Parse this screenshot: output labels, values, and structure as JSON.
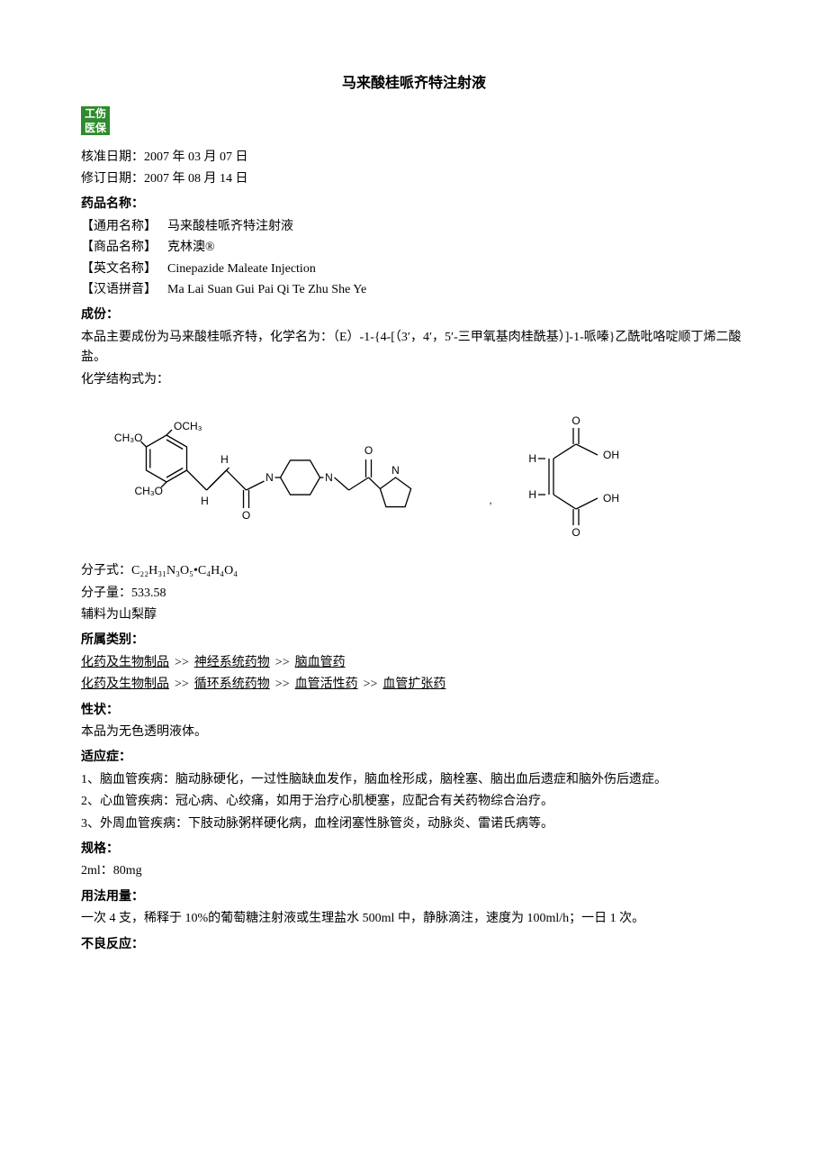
{
  "title": "马来酸桂哌齐特注射液",
  "badges": [
    "工伤",
    "医保"
  ],
  "approve_date_label": "核准日期：",
  "approve_date": "2007 年 03 月 07 日",
  "revise_date_label": "修订日期：",
  "revise_date": "2007 年 08 月 14 日",
  "sec_name": "药品名称：",
  "name_rows": [
    {
      "label": "【通用名称】",
      "value": "马来酸桂哌齐特注射液"
    },
    {
      "label": "【商品名称】",
      "value": "克林澳®"
    },
    {
      "label": "【英文名称】",
      "value": "Cinepazide Maleate Injection"
    },
    {
      "label": "【汉语拼音】",
      "value": "Ma Lai Suan Gui Pai Qi Te Zhu She Ye"
    }
  ],
  "sec_ingredient": "成份：",
  "ingredient_p1": "本品主要成份为马来酸桂哌齐特，化学名为：（E）-1-{4-[（3′，4′，5′-三甲氧基肉桂酰基）]-1-哌嗪}乙酰吡咯啶顺丁烯二酸盐。",
  "ingredient_p2": "化学结构式为：",
  "formula_label": "分子式：",
  "formula_value": "C₂₂H₃₁N₃O₅•C₄H₄O₄",
  "mw_label": "分子量：",
  "mw_value": "533.58",
  "excipient": "辅料为山梨醇",
  "sec_category": "所属类别：",
  "category_sep": ">>",
  "categories": [
    [
      "化药及生物制品",
      "神经系统药物",
      "脑血管药"
    ],
    [
      "化药及生物制品",
      "循环系统药物",
      "血管活性药",
      "血管扩张药"
    ]
  ],
  "sec_character": "性状：",
  "character_text": "本品为无色透明液体。",
  "sec_indication": "适应症：",
  "indications": [
    "1、脑血管疾病：脑动脉硬化，一过性脑缺血发作，脑血栓形成，脑栓塞、脑出血后遗症和脑外伤后遗症。",
    "2、心血管疾病：冠心病、心绞痛，如用于治疗心肌梗塞，应配合有关药物综合治疗。",
    "3、外周血管疾病：下肢动脉粥样硬化病，血栓闭塞性脉管炎，动脉炎、雷诺氏病等。"
  ],
  "sec_spec": "规格：",
  "spec_text": "2ml：80mg",
  "sec_dosage": "用法用量：",
  "dosage_text": "一次 4 支，稀释于 10%的葡萄糖注射液或生理盐水 500ml 中，静脉滴注，速度为 100ml/h；一日 1 次。",
  "sec_adverse": "不良反应：",
  "chem_labels": {
    "CH3O": "CH₃O",
    "OCH3": "OCH₃",
    "H": "H",
    "O": "O",
    "N": "N",
    "OH": "OH"
  },
  "chem_style": {
    "stroke": "#000000",
    "stroke_width": 1.3,
    "font_family": "Arial, sans-serif",
    "font_size": 12,
    "font_size_sub": 9
  }
}
